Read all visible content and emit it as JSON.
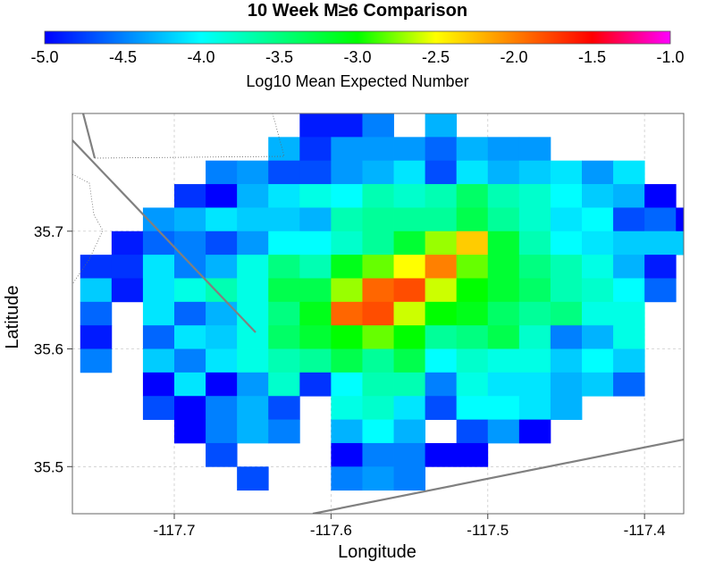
{
  "chart_data": {
    "type": "heatmap",
    "title": "10 Week M≥6 Comparison",
    "colorbar": {
      "label": "Log10 Mean Expected Number",
      "range": [
        -5.0,
        -1.0
      ],
      "ticks": [
        "-5.0",
        "-4.5",
        "-4.0",
        "-3.5",
        "-3.0",
        "-2.5",
        "-2.0",
        "-1.5",
        "-1.0"
      ],
      "tick_values": [
        -5.0,
        -4.5,
        -4.0,
        -3.5,
        -3.0,
        -2.5,
        -2.0,
        -1.5,
        -1.0
      ]
    },
    "xlabel": "Longitude",
    "ylabel": "Latitude",
    "xlim": [
      -117.765,
      -117.375
    ],
    "ylim": [
      35.46,
      35.8
    ],
    "x_ticks": [
      -117.7,
      -117.6,
      -117.5,
      -117.4
    ],
    "x_tick_labels": [
      "-117.7",
      "-117.6",
      "-117.5",
      "-117.4"
    ],
    "y_ticks": [
      35.5,
      35.6,
      35.7
    ],
    "y_tick_labels": [
      "35.5",
      "35.6",
      "35.7"
    ],
    "grid": true,
    "cell": {
      "dlon": 0.02,
      "dlat": 0.02,
      "lon0": -117.76,
      "lat0": 35.8
    },
    "rows": [
      [
        null,
        null,
        null,
        null,
        null,
        null,
        null,
        -4.9,
        -4.9,
        -4.5,
        null,
        -4.3,
        null,
        null,
        null,
        null,
        null,
        null,
        null,
        null
      ],
      [
        null,
        null,
        null,
        null,
        null,
        null,
        -4.3,
        -4.8,
        -4.4,
        -4.4,
        -4.4,
        -4.6,
        -4.3,
        -4.4,
        -4.4,
        null,
        null,
        null,
        null,
        null
      ],
      [
        null,
        null,
        null,
        null,
        -4.5,
        -4.4,
        -4.7,
        -4.7,
        -4.4,
        -4.3,
        -4.1,
        -4.7,
        -4.1,
        -4.3,
        -4.2,
        -4.1,
        -4.4,
        -4.1,
        null,
        null
      ],
      [
        null,
        null,
        null,
        -4.8,
        -5.0,
        -4.3,
        -4.1,
        -3.9,
        -4.0,
        -3.7,
        -3.8,
        -3.7,
        -3.4,
        -3.7,
        -3.8,
        -4.0,
        -4.2,
        -4.3,
        -5.0,
        null
      ],
      [
        null,
        null,
        -4.4,
        -4.3,
        -4.1,
        -4.2,
        -4.2,
        -4.3,
        -3.7,
        -3.6,
        -3.6,
        -3.6,
        -3.3,
        -3.6,
        -3.8,
        -4.1,
        -4.0,
        -4.7,
        -4.6,
        -5.0
      ],
      [
        null,
        -4.9,
        -4.6,
        -4.5,
        -4.7,
        -4.4,
        -4.0,
        -4.0,
        -3.8,
        -3.6,
        -3.2,
        -2.7,
        -2.3,
        -3.2,
        -3.7,
        -4.0,
        -4.1,
        -4.2,
        -4.2,
        -4.2
      ],
      [
        -4.8,
        -4.8,
        -4.1,
        -4.5,
        -4.3,
        -3.9,
        -3.5,
        -3.7,
        -3.1,
        -2.8,
        -2.5,
        -2.0,
        -2.8,
        -3.2,
        -3.5,
        -3.7,
        -3.9,
        -4.3,
        -4.9,
        null
      ],
      [
        -4.2,
        -4.9,
        -4.1,
        -3.9,
        -3.7,
        -3.9,
        -3.3,
        -3.3,
        -2.7,
        -1.9,
        -1.8,
        -2.6,
        -3.0,
        -3.2,
        -3.4,
        -3.7,
        -3.8,
        -4.0,
        -4.6,
        null
      ],
      [
        -4.6,
        null,
        -4.1,
        -4.6,
        -4.3,
        -3.9,
        -3.5,
        -3.1,
        -1.9,
        -1.8,
        -2.6,
        -3.0,
        -3.1,
        -3.4,
        -3.6,
        -3.5,
        -3.9,
        -3.9,
        null,
        null
      ],
      [
        -4.9,
        null,
        -4.6,
        -4.1,
        -4.2,
        -3.9,
        -3.4,
        -3.2,
        -3.0,
        -2.8,
        -3.0,
        -3.6,
        -3.5,
        -3.3,
        -3.8,
        -4.5,
        -4.3,
        -3.9,
        null,
        null
      ],
      [
        -4.5,
        null,
        -4.2,
        -4.5,
        -4.1,
        -3.9,
        -3.7,
        -3.6,
        -3.3,
        -3.6,
        -3.3,
        -4.0,
        -3.8,
        -3.9,
        -3.9,
        -4.2,
        -4.0,
        -4.2,
        null,
        null
      ],
      [
        null,
        null,
        -5.0,
        -4.1,
        -5.0,
        -4.4,
        -3.8,
        -4.8,
        -4.0,
        -3.7,
        -3.7,
        -4.5,
        -3.9,
        -4.1,
        -4.1,
        -4.3,
        -4.2,
        -4.6,
        null,
        null
      ],
      [
        null,
        null,
        -4.7,
        -5.0,
        -4.5,
        -4.3,
        -4.7,
        null,
        -3.9,
        -3.8,
        -4.1,
        -4.7,
        -4.0,
        -4.0,
        -4.1,
        -4.3,
        null,
        null,
        null,
        null
      ],
      [
        null,
        null,
        null,
        -5.0,
        -4.5,
        -4.3,
        -4.5,
        null,
        -4.3,
        -4.0,
        -4.3,
        null,
        -4.7,
        -4.4,
        -5.0,
        null,
        null,
        null,
        null,
        null
      ],
      [
        null,
        null,
        null,
        null,
        -4.7,
        null,
        null,
        null,
        -5.0,
        -4.5,
        -4.5,
        -5.0,
        -5.0,
        null,
        null,
        null,
        null,
        null,
        null,
        null
      ],
      [
        null,
        null,
        null,
        null,
        null,
        -4.7,
        null,
        null,
        -4.5,
        -4.4,
        -4.5,
        null,
        null,
        null,
        null,
        null,
        null,
        null,
        null,
        null
      ]
    ]
  }
}
